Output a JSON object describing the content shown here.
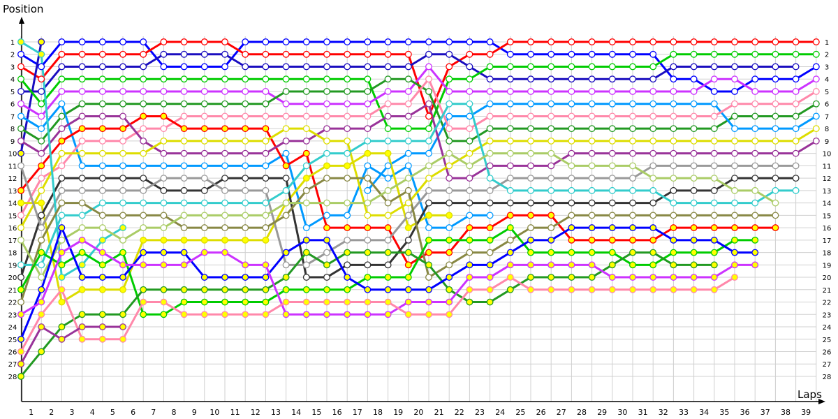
{
  "chart_data": {
    "type": "line",
    "title": "",
    "xlabel": "Laps",
    "ylabel": "Position",
    "xlim": [
      0,
      39
    ],
    "ylim": [
      1,
      28
    ],
    "y_inverted": true,
    "grid": true,
    "x_ticks": [
      1,
      2,
      3,
      4,
      5,
      6,
      7,
      8,
      9,
      10,
      11,
      12,
      13,
      14,
      15,
      16,
      17,
      18,
      19,
      20,
      21,
      22,
      23,
      24,
      25,
      26,
      27,
      28,
      29,
      30,
      31,
      32,
      33,
      34,
      35,
      36,
      37,
      38,
      39
    ],
    "y_ticks": [
      1,
      2,
      3,
      4,
      5,
      6,
      7,
      8,
      9,
      10,
      11,
      12,
      13,
      14,
      15,
      16,
      17,
      18,
      19,
      20,
      21,
      22,
      23,
      24,
      25,
      26,
      27,
      28
    ],
    "lapped_marker_color": "#ffff00",
    "series": [
      {
        "color": "#0000ff",
        "fill": "#ffffff",
        "positions": [
          2,
          3,
          1,
          1,
          1,
          1,
          1,
          3,
          3,
          3,
          3,
          1,
          1,
          1,
          1,
          1,
          1,
          1,
          1,
          1,
          1,
          1,
          1,
          1,
          2,
          2,
          2,
          2,
          2,
          2,
          2,
          2,
          4,
          4,
          5,
          5,
          4,
          4,
          4,
          3
        ]
      },
      {
        "color": "#ff0000",
        "fill": "#ffffff",
        "positions": [
          3,
          4,
          2,
          2,
          2,
          2,
          2,
          1,
          1,
          1,
          1,
          2,
          2,
          2,
          2,
          2,
          2,
          2,
          2,
          2,
          7,
          3,
          2,
          2,
          1,
          1,
          1,
          1,
          1,
          1,
          1,
          1,
          1,
          1,
          1,
          1,
          1,
          1,
          1,
          1
        ]
      },
      {
        "color": "#1a0dbf",
        "fill": "#ffffff",
        "positions": [
          5,
          5,
          3,
          3,
          3,
          3,
          3,
          2,
          2,
          2,
          2,
          3,
          3,
          3,
          3,
          3,
          3,
          3,
          3,
          3,
          2,
          2,
          3,
          4,
          4,
          4,
          4,
          4,
          4,
          4,
          4,
          4,
          3,
          3,
          3,
          3,
          3,
          3,
          3
        ]
      },
      {
        "color": "#1a0dbf",
        "fill": "#ffff00",
        "positions": [
          10,
          1
        ]
      },
      {
        "color": "#00cc00",
        "fill": "#ffffff",
        "positions": [
          4,
          6,
          4,
          4,
          4,
          4,
          4,
          4,
          4,
          4,
          4,
          4,
          4,
          4,
          4,
          4,
          4,
          4,
          8,
          8,
          8,
          4,
          4,
          3,
          3,
          3,
          3,
          3,
          3,
          3,
          3,
          3,
          2,
          2,
          2,
          2,
          2,
          2,
          2,
          2
        ]
      },
      {
        "color": "#cc33ff",
        "fill": "#ffffff",
        "positions": [
          6,
          7,
          5,
          5,
          5,
          5,
          5,
          5,
          5,
          5,
          5,
          5,
          5,
          6,
          6,
          6,
          6,
          6,
          5,
          5,
          3,
          5,
          5,
          5,
          5,
          5,
          5,
          5,
          5,
          5,
          5,
          5,
          5,
          5,
          4,
          4,
          5,
          5,
          5,
          4
        ]
      },
      {
        "color": "#229922",
        "fill": "#ffffff",
        "positions": [
          8,
          9,
          7,
          6,
          6,
          6,
          6,
          6,
          6,
          6,
          6,
          6,
          6,
          5,
          5,
          5,
          5,
          5,
          4,
          4,
          5,
          9,
          9,
          8,
          8,
          8,
          8,
          8,
          8,
          8,
          8,
          8,
          8,
          8,
          8,
          7,
          7,
          7,
          7,
          6
        ]
      },
      {
        "color": "#0099ff",
        "fill": "#ffffff",
        "positions": [
          7,
          8,
          6,
          11,
          11,
          11,
          11,
          11,
          11,
          11,
          11,
          11,
          11,
          10,
          16,
          15,
          15,
          11,
          12,
          11,
          16,
          16,
          15,
          15
        ]
      },
      {
        "color": "#0099ff",
        "fill": "#ffffff",
        "positions": [
          null,
          null,
          null,
          null,
          null,
          null,
          null,
          null,
          null,
          null,
          null,
          null,
          null,
          null,
          null,
          null,
          null,
          13,
          11,
          10,
          10,
          7,
          7,
          6,
          6,
          6,
          6,
          6,
          6,
          6,
          6,
          6,
          6,
          6,
          6,
          8,
          8,
          8,
          8,
          7
        ]
      },
      {
        "color": "#ff88aa",
        "fill": "#ffffff",
        "positions": [
          15,
          12,
          11,
          9,
          9,
          9,
          8,
          8,
          7,
          7,
          7,
          7,
          7,
          7,
          7,
          7,
          7,
          7,
          6,
          6,
          4,
          8,
          8,
          7,
          7,
          7,
          7,
          7,
          7,
          7,
          7,
          7,
          7,
          7,
          7,
          6,
          6,
          6,
          6,
          5
        ]
      },
      {
        "color": "#ff0000",
        "fill": "#ffff00",
        "positions": [
          13,
          11,
          9,
          8,
          8,
          8,
          7,
          7,
          8,
          8,
          8,
          8,
          8,
          11,
          10,
          16,
          16,
          16,
          16,
          19,
          18,
          18,
          16,
          16,
          15,
          15,
          15,
          17,
          17,
          17,
          17,
          17,
          16,
          16,
          16,
          16,
          16,
          16
        ]
      },
      {
        "color": "#993399",
        "fill": "#ffffff",
        "positions": [
          9,
          10,
          8,
          7,
          7,
          7,
          9,
          10,
          10,
          10,
          10,
          10,
          10,
          9,
          9,
          8,
          8,
          8,
          7,
          7,
          6,
          12,
          12,
          11,
          11,
          11,
          11,
          10,
          10,
          10,
          10,
          10,
          10,
          10,
          10,
          10,
          10,
          10,
          10,
          9
        ]
      },
      {
        "color": "#dddd00",
        "fill": "#ffffff",
        "positions": [
          16,
          13,
          10,
          10,
          10,
          10,
          10,
          9,
          9,
          9,
          9,
          9,
          9,
          8,
          8,
          9,
          9,
          15,
          15,
          14,
          12,
          11,
          10,
          9,
          9,
          9,
          9,
          9,
          9,
          9,
          9,
          9,
          9,
          9,
          9,
          9,
          9,
          9,
          9,
          8
        ]
      },
      {
        "color": "#dddd00",
        "fill": "#ffff00",
        "positions": [
          14,
          14,
          22,
          21,
          21,
          21,
          17,
          17,
          17,
          17,
          17,
          17,
          17,
          14,
          12,
          11,
          11,
          10,
          10,
          16,
          15,
          15
        ]
      },
      {
        "color": "#333333",
        "fill": "#ffffff",
        "positions": [
          20,
          15,
          12,
          12,
          12,
          12,
          12,
          13,
          13,
          13,
          12,
          12,
          12,
          12,
          20,
          20,
          19,
          19,
          19,
          17,
          14,
          14,
          14,
          14,
          14,
          14,
          14,
          14,
          14,
          14,
          14,
          14,
          13,
          13,
          13,
          12,
          12,
          12,
          12
        ]
      },
      {
        "color": "#999999",
        "fill": "#ffffff",
        "positions": [
          11,
          16,
          13,
          13,
          13,
          13,
          13,
          12,
          12,
          12,
          13,
          13,
          13,
          19,
          19,
          18,
          17,
          17,
          17,
          15,
          13,
          13,
          13,
          13,
          12,
          12,
          12,
          12,
          12,
          12,
          12,
          11,
          11,
          11,
          11,
          11,
          11,
          11,
          11
        ]
      },
      {
        "color": "#33cccc",
        "fill": "#ffff00",
        "positions": [
          1,
          2,
          20,
          19,
          17,
          16
        ]
      },
      {
        "color": "#33cccc",
        "fill": "#ffffff",
        "positions": [
          19,
          19,
          15,
          15,
          14,
          14,
          14,
          14,
          14,
          14,
          14,
          14,
          14,
          13,
          11,
          10,
          10,
          9,
          9,
          9,
          9,
          6,
          6,
          12,
          13,
          13,
          13,
          13,
          13,
          13,
          13,
          13,
          14,
          14,
          14,
          14,
          14,
          13,
          13
        ]
      },
      {
        "color": "#888844",
        "fill": "#ffffff",
        "positions": [
          22,
          17,
          14,
          14,
          15,
          15,
          15,
          15,
          16,
          16,
          16,
          16,
          16,
          15,
          13,
          12,
          12,
          12,
          14,
          13,
          20,
          19,
          18,
          18,
          17,
          16,
          16,
          15,
          15,
          15,
          15,
          15,
          15,
          15,
          15,
          15,
          15,
          15
        ]
      },
      {
        "color": "#aacc66",
        "fill": "#ffffff",
        "positions": [
          17,
          20,
          17,
          16,
          16,
          17,
          16,
          16,
          15,
          15,
          15,
          15,
          15,
          14,
          14,
          14,
          14,
          14,
          13,
          12,
          11,
          10,
          11,
          10,
          10,
          10,
          10,
          11,
          11,
          11,
          11,
          12,
          12,
          12,
          12,
          13,
          13,
          14
        ]
      },
      {
        "color": "#00cc00",
        "fill": "#ffff00",
        "positions": [
          21,
          18,
          19,
          18,
          19,
          18,
          23,
          23,
          22,
          22,
          22,
          22,
          22,
          21,
          21,
          21,
          21,
          20,
          20,
          20,
          17,
          17,
          17,
          17,
          16,
          18,
          18,
          18,
          18,
          18,
          19,
          19,
          18,
          18,
          18,
          17,
          17
        ]
      },
      {
        "color": "#229922",
        "fill": "#ffff00",
        "positions": [
          28,
          26,
          24,
          23,
          23,
          23,
          21,
          21,
          21,
          21,
          21,
          21,
          21,
          20,
          18,
          19,
          18,
          18,
          18,
          18,
          19,
          21,
          22,
          22,
          21,
          20,
          20,
          20,
          20,
          19,
          18,
          18,
          19,
          19,
          19
        ]
      },
      {
        "color": "#0000ff",
        "fill": "#ffff00",
        "positions": [
          25,
          21,
          16,
          20,
          20,
          20,
          18,
          18,
          18,
          20,
          20,
          20,
          20,
          18,
          17,
          17,
          20,
          21,
          21,
          21,
          21,
          20,
          19,
          19,
          18,
          17,
          17,
          16,
          16,
          16,
          16,
          16,
          17,
          17,
          17,
          18,
          18
        ]
      },
      {
        "color": "#cc33ff",
        "fill": "#ffff00",
        "positions": [
          23,
          22,
          18,
          17,
          18,
          19,
          19,
          19,
          19,
          18,
          18,
          19,
          19,
          23,
          23,
          23,
          23,
          23,
          23,
          22,
          22,
          22,
          20,
          20,
          19,
          19,
          19,
          19,
          19,
          20,
          20,
          20,
          20,
          20,
          20,
          19,
          19
        ]
      },
      {
        "color": "#ff88aa",
        "fill": "#ffff00",
        "positions": [
          26,
          23,
          21,
          25,
          25,
          25,
          22,
          22,
          23,
          23,
          23,
          23,
          23,
          22,
          22,
          22,
          22,
          22,
          22,
          23,
          23,
          23,
          21,
          21,
          20,
          21,
          21,
          21,
          21,
          21,
          21,
          21,
          21,
          21,
          21,
          20
        ]
      },
      {
        "color": "#993399",
        "fill": "#ffff00",
        "positions": [
          27,
          24,
          25,
          24,
          24,
          24
        ]
      }
    ]
  }
}
